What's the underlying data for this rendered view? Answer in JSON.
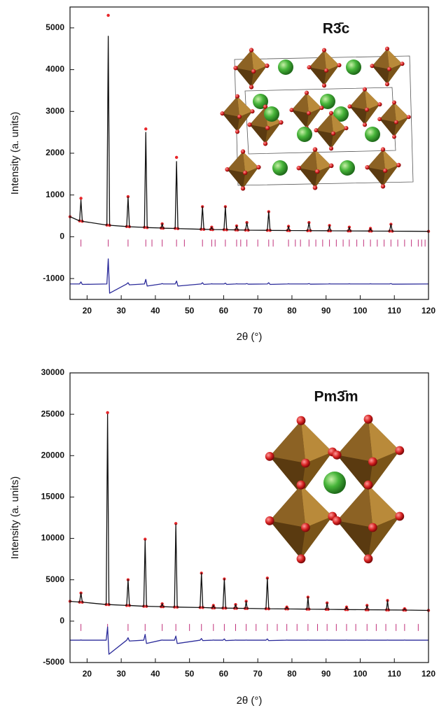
{
  "chart_data": [
    {
      "type": "line",
      "xlabel": "2θ (°)",
      "ylabel": "Intensity (a. units)",
      "annotation": "R3̄c",
      "xlim": [
        15,
        120
      ],
      "xticks": [
        20,
        30,
        40,
        50,
        60,
        70,
        80,
        90,
        100,
        110,
        120
      ],
      "ylim": [
        -1500,
        5500
      ],
      "yticks": [
        -1000,
        0,
        1000,
        2000,
        3000,
        4000,
        5000
      ],
      "x": [
        15,
        17.8,
        18.2,
        18.6,
        25.8,
        26.2,
        26.6,
        31.6,
        32,
        32.4,
        36.8,
        37.2,
        37.6,
        41.7,
        42,
        42.3,
        45.8,
        46.2,
        46.6,
        53.4,
        53.8,
        54.2,
        56.2,
        56.5,
        56.8,
        60.1,
        60.5,
        60.9,
        63.5,
        63.8,
        64.1,
        66.4,
        66.8,
        67.2,
        72.8,
        73.2,
        73.6,
        78.7,
        79,
        79.3,
        84.6,
        85,
        85.4,
        90.7,
        91,
        91.3,
        96.5,
        96.8,
        97.1,
        102.7,
        103,
        103.3,
        108.6,
        109,
        109.4,
        120
      ],
      "series": [
        {
          "mode": "markers",
          "color": "#e8262a",
          "values": [
            480,
            380,
            920,
            370,
            280,
            5300,
            275,
            245,
            960,
            240,
            225,
            2580,
            220,
            210,
            310,
            205,
            200,
            1900,
            195,
            180,
            720,
            178,
            175,
            230,
            172,
            170,
            720,
            168,
            165,
            260,
            163,
            160,
            340,
            158,
            155,
            600,
            153,
            150,
            250,
            149,
            147,
            340,
            146,
            144,
            270,
            143,
            141,
            230,
            140,
            138,
            200,
            137,
            135,
            300,
            134,
            130
          ]
        },
        {
          "mode": "line",
          "color": "#111111",
          "values": [
            480,
            380,
            880,
            370,
            280,
            4800,
            275,
            245,
            950,
            240,
            225,
            2500,
            220,
            210,
            310,
            205,
            200,
            1800,
            195,
            180,
            720,
            178,
            175,
            230,
            172,
            170,
            720,
            168,
            165,
            260,
            163,
            160,
            340,
            158,
            155,
            600,
            153,
            150,
            250,
            149,
            147,
            340,
            146,
            144,
            270,
            143,
            141,
            230,
            140,
            138,
            200,
            137,
            135,
            300,
            134,
            130
          ]
        },
        {
          "mode": "line",
          "color": "#2b2b9a",
          "values": [
            -1130,
            -1130,
            -1080,
            -1140,
            -1130,
            -530,
            -1350,
            -1130,
            -1100,
            -1150,
            -1130,
            -1020,
            -1180,
            -1130,
            -1120,
            -1130,
            -1130,
            -1060,
            -1180,
            -1130,
            -1100,
            -1140,
            -1130,
            -1125,
            -1130,
            -1130,
            -1110,
            -1140,
            -1130,
            -1125,
            -1130,
            -1130,
            -1120,
            -1135,
            -1130,
            -1100,
            -1140,
            -1130,
            -1125,
            -1130,
            -1130,
            -1120,
            -1135,
            -1130,
            -1125,
            -1130,
            -1130,
            -1125,
            -1130,
            -1130,
            -1125,
            -1130,
            -1130,
            -1120,
            -1135,
            -1130
          ]
        }
      ],
      "reflections_color": "#c0307a",
      "reflections": [
        18.2,
        26.2,
        32,
        37.2,
        39,
        42,
        46.2,
        48.5,
        53.8,
        56.5,
        57.5,
        60.5,
        63.8,
        65,
        66.8,
        70,
        73.2,
        74.5,
        79,
        81,
        82.5,
        85,
        87,
        89,
        91,
        93,
        95,
        96.8,
        99,
        101,
        103,
        105,
        107,
        109,
        111,
        113,
        115,
        117,
        118,
        119
      ]
    },
    {
      "type": "line",
      "xlabel": "2θ (°)",
      "ylabel": "Intensity (a. units)",
      "annotation": "Pm3̄m",
      "xlim": [
        15,
        120
      ],
      "xticks": [
        20,
        30,
        40,
        50,
        60,
        70,
        80,
        90,
        100,
        110,
        120
      ],
      "ylim": [
        -5000,
        30000
      ],
      "yticks": [
        -5000,
        0,
        5000,
        10000,
        15000,
        20000,
        25000,
        30000
      ],
      "x": [
        15,
        17.8,
        18.2,
        18.6,
        25.6,
        26,
        26.4,
        31.6,
        32,
        32.4,
        36.6,
        37,
        37.4,
        41.7,
        42,
        42.3,
        45.6,
        46,
        46.4,
        53.1,
        53.5,
        53.9,
        56.7,
        57,
        57.3,
        59.8,
        60.2,
        60.6,
        63.2,
        63.5,
        63.8,
        66.3,
        66.6,
        66.9,
        72.4,
        72.8,
        73.2,
        78.2,
        78.5,
        78.8,
        84.4,
        84.7,
        85,
        90,
        90.3,
        90.6,
        95.7,
        96,
        96.3,
        101.7,
        102,
        102.3,
        107.7,
        108,
        108.3,
        112.7,
        113,
        113.3,
        120
      ],
      "series": [
        {
          "mode": "markers",
          "color": "#e8262a",
          "values": [
            2400,
            2300,
            3400,
            2290,
            2010,
            25200,
            2000,
            1900,
            5000,
            1895,
            1800,
            9900,
            1795,
            1750,
            2100,
            1748,
            1700,
            11800,
            1695,
            1650,
            5800,
            1648,
            1600,
            1900,
            1598,
            1580,
            5100,
            1578,
            1560,
            2000,
            1558,
            1540,
            2400,
            1538,
            1500,
            5200,
            1498,
            1480,
            1700,
            1478,
            1450,
            2900,
            1448,
            1430,
            2200,
            1428,
            1400,
            1700,
            1398,
            1380,
            1900,
            1378,
            1360,
            2500,
            1358,
            1340,
            1500,
            1338,
            1300
          ]
        },
        {
          "mode": "line",
          "color": "#111111",
          "values": [
            2400,
            2300,
            3400,
            2290,
            2010,
            25000,
            2000,
            1900,
            5000,
            1895,
            1800,
            9800,
            1795,
            1750,
            2100,
            1748,
            1700,
            11700,
            1695,
            1650,
            5800,
            1648,
            1600,
            1900,
            1598,
            1580,
            5100,
            1578,
            1560,
            2000,
            1558,
            1540,
            2400,
            1538,
            1500,
            5200,
            1498,
            1480,
            1700,
            1478,
            1450,
            2900,
            1448,
            1430,
            2200,
            1428,
            1400,
            1700,
            1398,
            1380,
            1900,
            1378,
            1360,
            2500,
            1358,
            1340,
            1500,
            1338,
            1300
          ]
        },
        {
          "mode": "line",
          "color": "#2b2b9a",
          "values": [
            -2300,
            -2300,
            -2280,
            -2300,
            -2300,
            -700,
            -4000,
            -2300,
            -2000,
            -2400,
            -2300,
            -1600,
            -2700,
            -2300,
            -2280,
            -2300,
            -2300,
            -1800,
            -2700,
            -2300,
            -2100,
            -2350,
            -2300,
            -2280,
            -2300,
            -2300,
            -2150,
            -2350,
            -2300,
            -2280,
            -2300,
            -2300,
            -2280,
            -2300,
            -2300,
            -2150,
            -2350,
            -2300,
            -2280,
            -2300,
            -2300,
            -2280,
            -2300,
            -2300,
            -2280,
            -2300,
            -2300,
            -2280,
            -2300,
            -2300,
            -2280,
            -2300,
            -2300,
            -2280,
            -2300,
            -2300,
            -2280,
            -2300,
            -2300
          ]
        }
      ],
      "reflections_color": "#c0307a",
      "reflections": [
        18.2,
        26,
        32,
        37,
        42,
        46,
        50,
        53.5,
        57,
        60.2,
        63.5,
        66.6,
        69.5,
        72.8,
        75.7,
        78.5,
        81.5,
        84.7,
        87.5,
        90.3,
        93,
        96,
        98.7,
        102,
        104.7,
        107.5,
        110.5,
        113,
        117
      ]
    }
  ]
}
